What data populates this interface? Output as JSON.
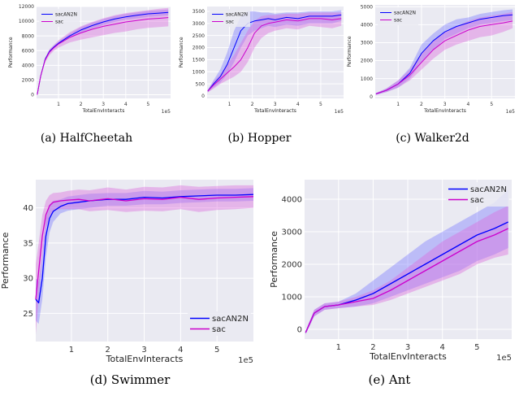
{
  "figure": {
    "captions": [
      {
        "label": "(a)",
        "name": "HalfCheetah"
      },
      {
        "label": "(b)",
        "name": "Hopper"
      },
      {
        "label": "(c)",
        "name": "Walker2d"
      },
      {
        "label": "(d)",
        "name": "Swimmer"
      },
      {
        "label": "(e)",
        "name": "Ant"
      }
    ]
  },
  "colors": {
    "background": "#eaeaf2",
    "grid": "#ffffff",
    "sacAN2N": "#0000ff",
    "sac": "#cc00cc",
    "sacAN2N_band": "#7777ff",
    "sac_band": "#dd66dd"
  },
  "chart_data": [
    {
      "type": "line",
      "title": "",
      "xlabel": "TotalEnvInteracts",
      "ylabel": "Performance",
      "x_multiplier_label": "1e5",
      "xlim": [
        0.02,
        6.0
      ],
      "ylim": [
        -500,
        12000
      ],
      "xticks": [
        1,
        2,
        3,
        4,
        5
      ],
      "yticks": [
        0,
        2000,
        4000,
        6000,
        8000,
        10000,
        12000
      ],
      "grid": true,
      "legend_position": "top-left",
      "x": [
        0.05,
        0.2,
        0.4,
        0.6,
        0.8,
        1.0,
        1.5,
        2.0,
        2.5,
        3.0,
        3.5,
        4.0,
        4.5,
        5.0,
        5.5,
        5.9
      ],
      "series": [
        {
          "name": "sacAN2N",
          "values": [
            0,
            2500,
            4800,
            5900,
            6500,
            7000,
            8000,
            8800,
            9400,
            9900,
            10300,
            10600,
            10800,
            11000,
            11100,
            11200
          ],
          "lower": [
            0,
            2400,
            4600,
            5700,
            6300,
            6800,
            7700,
            8400,
            9000,
            9500,
            9900,
            10200,
            10400,
            10600,
            10700,
            10800
          ],
          "upper": [
            0,
            2600,
            5000,
            6100,
            6700,
            7200,
            8300,
            9200,
            9800,
            10300,
            10700,
            11000,
            11200,
            11400,
            11500,
            11600
          ]
        },
        {
          "name": "sac",
          "values": [
            0,
            2500,
            4700,
            5800,
            6400,
            6900,
            7800,
            8400,
            8900,
            9300,
            9600,
            9900,
            10100,
            10300,
            10400,
            10500
          ],
          "lower": [
            0,
            2300,
            4400,
            5400,
            6000,
            6400,
            7100,
            7500,
            7800,
            8100,
            8400,
            8600,
            8900,
            9100,
            9200,
            9300
          ],
          "upper": [
            0,
            2700,
            5000,
            6200,
            6800,
            7400,
            8500,
            9300,
            9900,
            10400,
            10800,
            11100,
            11300,
            11500,
            11700,
            11800
          ]
        }
      ]
    },
    {
      "type": "line",
      "title": "",
      "xlabel": "TotalEnvInteracts",
      "ylabel": "Performance",
      "x_multiplier_label": "1e5",
      "xlim": [
        0.02,
        6.0
      ],
      "ylim": [
        -100,
        3700
      ],
      "xticks": [
        1,
        2,
        3,
        4,
        5
      ],
      "yticks": [
        0,
        500,
        1000,
        1500,
        2000,
        2500,
        3000,
        3500
      ],
      "grid": true,
      "legend_position": "top-left",
      "x": [
        0.05,
        0.3,
        0.6,
        0.9,
        1.2,
        1.5,
        1.8,
        2.1,
        2.4,
        2.7,
        3.0,
        3.5,
        4.0,
        4.5,
        5.0,
        5.5,
        5.9
      ],
      "series": [
        {
          "name": "sacAN2N",
          "values": [
            200,
            500,
            800,
            1300,
            2000,
            2700,
            3000,
            3100,
            3150,
            3200,
            3150,
            3250,
            3200,
            3300,
            3300,
            3300,
            3350
          ],
          "lower": [
            150,
            350,
            550,
            900,
            1400,
            2000,
            2500,
            2700,
            2800,
            2900,
            2850,
            2950,
            2900,
            3000,
            3000,
            3000,
            3100
          ],
          "upper": [
            250,
            650,
            1100,
            1800,
            2700,
            3300,
            3500,
            3500,
            3450,
            3450,
            3400,
            3450,
            3450,
            3500,
            3500,
            3500,
            3550
          ]
        },
        {
          "name": "sac",
          "values": [
            200,
            450,
            700,
            950,
            1200,
            1500,
            2000,
            2600,
            2900,
            3000,
            3050,
            3150,
            3100,
            3200,
            3200,
            3150,
            3200
          ],
          "lower": [
            150,
            300,
            500,
            650,
            800,
            1000,
            1400,
            2000,
            2400,
            2600,
            2700,
            2800,
            2750,
            2900,
            2850,
            2800,
            2900
          ],
          "upper": [
            250,
            600,
            900,
            1300,
            1700,
            2200,
            2700,
            3100,
            3300,
            3350,
            3350,
            3400,
            3400,
            3450,
            3450,
            3450,
            3450
          ]
        }
      ]
    },
    {
      "type": "line",
      "title": "",
      "xlabel": "TotalEnvInteracts",
      "ylabel": "Performance",
      "x_multiplier_label": "1e5",
      "xlim": [
        0.02,
        6.0
      ],
      "ylim": [
        -100,
        5100
      ],
      "xticks": [
        1,
        2,
        3,
        4,
        5
      ],
      "yticks": [
        0,
        1000,
        2000,
        3000,
        4000,
        5000
      ],
      "grid": true,
      "legend_position": "top-left",
      "x": [
        0.05,
        0.5,
        1.0,
        1.5,
        2.0,
        2.5,
        3.0,
        3.5,
        4.0,
        4.5,
        5.0,
        5.5,
        5.9
      ],
      "series": [
        {
          "name": "sacAN2N",
          "values": [
            150,
            350,
            700,
            1300,
            2400,
            3100,
            3600,
            3900,
            4100,
            4300,
            4400,
            4500,
            4550
          ],
          "lower": [
            100,
            250,
            500,
            1000,
            1900,
            2600,
            3200,
            3500,
            3800,
            4000,
            4100,
            4200,
            4250
          ],
          "upper": [
            200,
            450,
            900,
            1600,
            2900,
            3500,
            4000,
            4300,
            4400,
            4600,
            4700,
            4800,
            4850
          ]
        },
        {
          "name": "sac",
          "values": [
            150,
            350,
            700,
            1200,
            1900,
            2600,
            3100,
            3400,
            3700,
            3900,
            4000,
            4100,
            4200
          ],
          "lower": [
            100,
            250,
            500,
            900,
            1500,
            2100,
            2600,
            2900,
            3100,
            3300,
            3400,
            3600,
            3800
          ],
          "upper": [
            200,
            450,
            900,
            1500,
            2400,
            3100,
            3600,
            3900,
            4200,
            4400,
            4500,
            4600,
            4700
          ]
        }
      ]
    },
    {
      "type": "line",
      "title": "",
      "xlabel": "TotalEnvInteracts",
      "ylabel": "Performance",
      "x_multiplier_label": "1e5",
      "xlim": [
        0.02,
        6.0
      ],
      "ylim": [
        21,
        44
      ],
      "xticks": [
        1,
        2,
        3,
        4,
        5
      ],
      "yticks": [
        25,
        30,
        35,
        40
      ],
      "grid": true,
      "legend_position": "bottom-right",
      "x": [
        0.02,
        0.1,
        0.2,
        0.3,
        0.4,
        0.5,
        0.7,
        0.9,
        1.2,
        1.5,
        2.0,
        2.5,
        3.0,
        3.5,
        4.0,
        4.5,
        5.0,
        5.5,
        6.0
      ],
      "series": [
        {
          "name": "sacAN2N",
          "values": [
            27,
            26.5,
            30,
            36,
            38.5,
            39.5,
            40.2,
            40.6,
            40.8,
            41.0,
            41.2,
            41.2,
            41.5,
            41.4,
            41.6,
            41.7,
            41.8,
            41.8,
            41.9
          ],
          "lower": [
            24,
            23.5,
            27,
            33,
            36.5,
            38,
            39.2,
            39.6,
            39.8,
            40.0,
            40.3,
            40.3,
            40.5,
            40.5,
            40.7,
            40.8,
            40.9,
            40.9,
            41.0
          ],
          "upper": [
            30,
            29.5,
            33,
            38.5,
            40.5,
            41,
            41.2,
            41.6,
            41.8,
            42.0,
            42.1,
            42.1,
            42.4,
            42.3,
            42.5,
            42.6,
            42.7,
            42.7,
            42.8
          ]
        },
        {
          "name": "sac",
          "values": [
            27,
            31,
            36,
            39,
            40.3,
            40.8,
            41.0,
            41.1,
            41.2,
            41.0,
            41.3,
            41.0,
            41.3,
            41.2,
            41.5,
            41.2,
            41.4,
            41.5,
            41.6
          ],
          "lower": [
            22,
            27,
            33,
            37,
            38.8,
            39.5,
            39.8,
            39.8,
            39.8,
            39.5,
            39.7,
            39.4,
            39.6,
            39.5,
            39.8,
            39.4,
            39.7,
            39.8,
            40.0
          ],
          "upper": [
            32,
            35,
            39,
            41,
            41.8,
            42.1,
            42.2,
            42.4,
            42.6,
            42.5,
            42.9,
            42.6,
            43.0,
            42.9,
            43.2,
            43.0,
            43.1,
            43.2,
            43.2
          ]
        }
      ]
    },
    {
      "type": "line",
      "title": "",
      "xlabel": "TotalEnvInteracts",
      "ylabel": "Performance",
      "x_multiplier_label": "1e5",
      "xlim": [
        0.02,
        6.0
      ],
      "ylim": [
        -300,
        4600
      ],
      "xticks": [
        1,
        2,
        3,
        4,
        5
      ],
      "yticks": [
        0,
        1000,
        2000,
        3000,
        4000
      ],
      "grid": true,
      "legend_position": "top-right",
      "x": [
        0.05,
        0.3,
        0.6,
        1.0,
        1.5,
        2.0,
        2.5,
        3.0,
        3.5,
        4.0,
        4.5,
        5.0,
        5.5,
        5.9
      ],
      "series": [
        {
          "name": "sacAN2N",
          "values": [
            -100,
            500,
            700,
            750,
            900,
            1100,
            1400,
            1700,
            2000,
            2300,
            2600,
            2900,
            3100,
            3300
          ],
          "lower": [
            -150,
            400,
            600,
            650,
            700,
            800,
            1000,
            1200,
            1400,
            1600,
            1800,
            2100,
            2300,
            2500
          ],
          "upper": [
            -50,
            600,
            800,
            850,
            1100,
            1500,
            1900,
            2300,
            2700,
            3000,
            3300,
            3600,
            3900,
            4300
          ]
        },
        {
          "name": "sac",
          "values": [
            -100,
            500,
            700,
            750,
            850,
            950,
            1200,
            1500,
            1800,
            2100,
            2400,
            2700,
            2900,
            3100
          ],
          "lower": [
            -150,
            400,
            600,
            650,
            700,
            750,
            900,
            1100,
            1300,
            1500,
            1700,
            2000,
            2200,
            2300
          ],
          "upper": [
            -50,
            600,
            800,
            850,
            1000,
            1200,
            1500,
            1900,
            2300,
            2700,
            3000,
            3300,
            3600,
            3800
          ]
        }
      ]
    }
  ]
}
